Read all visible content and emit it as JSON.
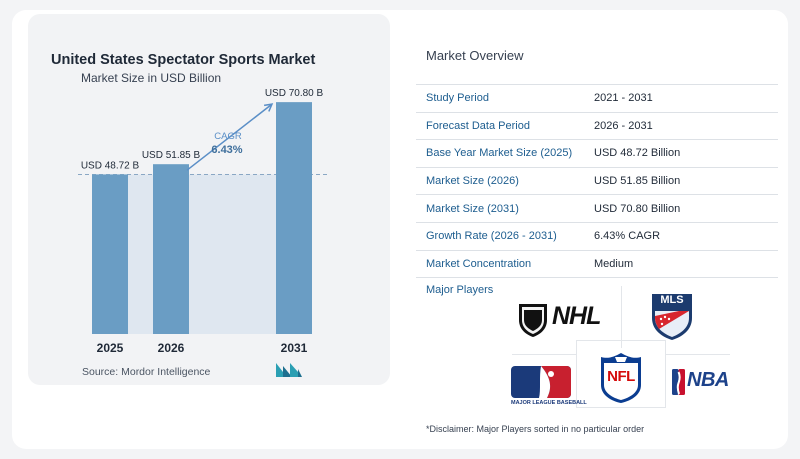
{
  "chart_data": {
    "type": "bar",
    "title": "United States Spectator Sports Market",
    "subtitle": "Market Size in USD Billion",
    "categories": [
      "2025",
      "2026",
      "2031"
    ],
    "values": [
      48.72,
      51.85,
      70.8
    ],
    "value_labels": [
      "USD 48.72 B",
      "USD 51.85 B",
      "USD 70.80 B"
    ],
    "cagr_label": "CAGR",
    "cagr_value": "6.43%",
    "ylim": [
      0,
      80
    ],
    "grid": false,
    "colors": {
      "bar": "#6a9dc4",
      "band": "#dfe7f0",
      "arrow": "#5b8fc7",
      "dashed": "#8aa7c4",
      "cagr_label": "#5b8fc7",
      "cagr_value": "#3f6f9c"
    },
    "source": "Source:  Mordor Intelligence"
  },
  "overview": {
    "title": "Market Overview",
    "rows": [
      {
        "label": "Study Period",
        "value": "2021 - 2031"
      },
      {
        "label": "Forecast Data Period",
        "value": "2026 - 2031"
      },
      {
        "label": "Base Year Market Size (2025)",
        "value": "USD 48.72 Billion"
      },
      {
        "label": "Market Size (2026)",
        "value": "USD 51.85 Billion"
      },
      {
        "label": "Market Size (2031)",
        "value": "USD 70.80 Billion"
      },
      {
        "label": "Growth Rate (2026 - 2031)",
        "value": "6.43% CAGR"
      },
      {
        "label": "Market Concentration",
        "value": "Medium"
      }
    ]
  },
  "players": {
    "title": "Major Players",
    "logos": {
      "nhl": "NHL",
      "mls": "MLS",
      "nfl": "NFL",
      "mlb_caption": "MAJOR LEAGUE BASEBALL",
      "nba": "NBA"
    },
    "disclaimer": "*Disclaimer: Major Players sorted in no particular order"
  }
}
